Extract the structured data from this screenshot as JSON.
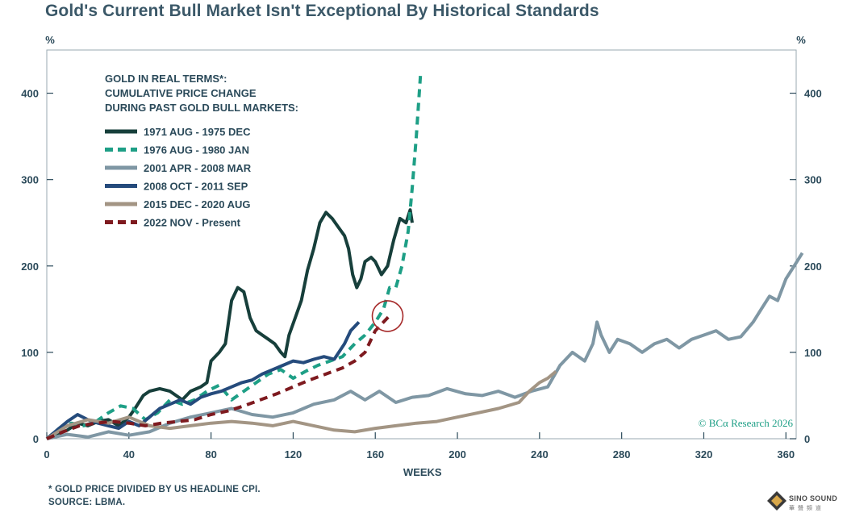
{
  "title": "Gold's Current Bull Market Isn't Exceptional By Historical Standards",
  "footnote1": "* GOLD PRICE DIVIDED BY US HEADLINE CPI.",
  "footnote2": "SOURCE: LBMA.",
  "watermark": "© BCα Research 2026",
  "logo": {
    "line1": "SINO SOUND",
    "line2": "華 聲 頻 道"
  },
  "chart_data": {
    "type": "line",
    "title": "Gold's Current Bull Market Isn't Exceptional By Historical Standards",
    "legend_title": [
      "GOLD IN REAL TERMS*:",
      "CUMULATIVE PRICE CHANGE",
      "DURING PAST GOLD BULL MARKETS:"
    ],
    "xlabel": "WEEKS",
    "ylabel_left": "%",
    "ylabel_right": "%",
    "xlim": [
      0,
      365
    ],
    "ylim": [
      0,
      450
    ],
    "xticks": [
      0,
      40,
      80,
      120,
      160,
      200,
      240,
      280,
      320,
      360
    ],
    "yticks": [
      0,
      100,
      200,
      300,
      400
    ],
    "legend_position": "top-left",
    "series": [
      {
        "name": "1971 AUG - 1975 DEC",
        "color": "#173f3b",
        "dash": "solid",
        "points": [
          [
            0,
            0
          ],
          [
            5,
            5
          ],
          [
            10,
            10
          ],
          [
            15,
            18
          ],
          [
            20,
            15
          ],
          [
            25,
            20
          ],
          [
            30,
            22
          ],
          [
            35,
            15
          ],
          [
            40,
            25
          ],
          [
            43,
            35
          ],
          [
            47,
            50
          ],
          [
            50,
            55
          ],
          [
            55,
            58
          ],
          [
            60,
            55
          ],
          [
            63,
            50
          ],
          [
            66,
            45
          ],
          [
            70,
            55
          ],
          [
            75,
            60
          ],
          [
            78,
            65
          ],
          [
            80,
            90
          ],
          [
            84,
            100
          ],
          [
            87,
            110
          ],
          [
            90,
            160
          ],
          [
            93,
            175
          ],
          [
            96,
            170
          ],
          [
            99,
            140
          ],
          [
            102,
            125
          ],
          [
            105,
            120
          ],
          [
            108,
            115
          ],
          [
            111,
            110
          ],
          [
            114,
            100
          ],
          [
            116,
            95
          ],
          [
            118,
            120
          ],
          [
            121,
            140
          ],
          [
            124,
            160
          ],
          [
            127,
            195
          ],
          [
            130,
            220
          ],
          [
            133,
            250
          ],
          [
            136,
            262
          ],
          [
            139,
            255
          ],
          [
            142,
            245
          ],
          [
            145,
            235
          ],
          [
            147,
            220
          ],
          [
            149,
            190
          ],
          [
            151,
            175
          ],
          [
            153,
            185
          ],
          [
            155,
            205
          ],
          [
            158,
            210
          ],
          [
            160,
            205
          ],
          [
            163,
            190
          ],
          [
            166,
            200
          ],
          [
            169,
            230
          ],
          [
            172,
            255
          ],
          [
            175,
            250
          ],
          [
            177,
            265
          ],
          [
            178,
            250
          ]
        ]
      },
      {
        "name": "1976 AUG - 1980 JAN",
        "color": "#1e9f86",
        "dash": "dashed",
        "points": [
          [
            0,
            0
          ],
          [
            6,
            12
          ],
          [
            12,
            18
          ],
          [
            18,
            15
          ],
          [
            24,
            20
          ],
          [
            30,
            30
          ],
          [
            36,
            38
          ],
          [
            42,
            35
          ],
          [
            48,
            22
          ],
          [
            54,
            30
          ],
          [
            60,
            45
          ],
          [
            66,
            40
          ],
          [
            72,
            45
          ],
          [
            78,
            55
          ],
          [
            84,
            62
          ],
          [
            90,
            45
          ],
          [
            96,
            55
          ],
          [
            102,
            65
          ],
          [
            108,
            75
          ],
          [
            114,
            80
          ],
          [
            120,
            70
          ],
          [
            126,
            78
          ],
          [
            132,
            85
          ],
          [
            138,
            90
          ],
          [
            144,
            95
          ],
          [
            150,
            110
          ],
          [
            155,
            120
          ],
          [
            160,
            135
          ],
          [
            164,
            150
          ],
          [
            167,
            175
          ],
          [
            170,
            175
          ],
          [
            173,
            200
          ],
          [
            176,
            240
          ],
          [
            178,
            290
          ],
          [
            180,
            350
          ],
          [
            182,
            420
          ]
        ]
      },
      {
        "name": "2001 APR - 2008 MAR",
        "color": "#7f97a4",
        "dash": "solid",
        "points": [
          [
            0,
            0
          ],
          [
            10,
            5
          ],
          [
            20,
            2
          ],
          [
            30,
            8
          ],
          [
            40,
            4
          ],
          [
            50,
            8
          ],
          [
            60,
            18
          ],
          [
            70,
            25
          ],
          [
            80,
            30
          ],
          [
            90,
            35
          ],
          [
            100,
            28
          ],
          [
            110,
            25
          ],
          [
            120,
            30
          ],
          [
            130,
            40
          ],
          [
            140,
            45
          ],
          [
            148,
            55
          ],
          [
            155,
            45
          ],
          [
            162,
            55
          ],
          [
            170,
            42
          ],
          [
            178,
            48
          ],
          [
            186,
            50
          ],
          [
            195,
            58
          ],
          [
            204,
            52
          ],
          [
            212,
            50
          ],
          [
            220,
            55
          ],
          [
            228,
            48
          ],
          [
            236,
            55
          ],
          [
            244,
            60
          ],
          [
            250,
            85
          ],
          [
            256,
            100
          ],
          [
            262,
            90
          ],
          [
            266,
            110
          ],
          [
            268,
            135
          ],
          [
            270,
            120
          ],
          [
            274,
            100
          ],
          [
            278,
            115
          ],
          [
            284,
            110
          ],
          [
            290,
            100
          ],
          [
            296,
            110
          ],
          [
            302,
            115
          ],
          [
            308,
            105
          ],
          [
            314,
            115
          ],
          [
            320,
            120
          ],
          [
            326,
            125
          ],
          [
            332,
            115
          ],
          [
            338,
            118
          ],
          [
            344,
            135
          ],
          [
            348,
            150
          ],
          [
            352,
            165
          ],
          [
            356,
            160
          ],
          [
            360,
            185
          ],
          [
            364,
            200
          ],
          [
            368,
            215
          ]
        ]
      },
      {
        "name": "2008 OCT - 2011 SEP",
        "color": "#254b7c",
        "dash": "solid",
        "points": [
          [
            0,
            0
          ],
          [
            5,
            10
          ],
          [
            10,
            20
          ],
          [
            15,
            28
          ],
          [
            20,
            22
          ],
          [
            25,
            18
          ],
          [
            30,
            15
          ],
          [
            35,
            12
          ],
          [
            40,
            20
          ],
          [
            45,
            15
          ],
          [
            50,
            25
          ],
          [
            55,
            35
          ],
          [
            60,
            40
          ],
          [
            65,
            45
          ],
          [
            70,
            40
          ],
          [
            75,
            48
          ],
          [
            80,
            52
          ],
          [
            85,
            55
          ],
          [
            90,
            60
          ],
          [
            95,
            65
          ],
          [
            100,
            68
          ],
          [
            105,
            75
          ],
          [
            110,
            80
          ],
          [
            115,
            85
          ],
          [
            120,
            90
          ],
          [
            125,
            88
          ],
          [
            130,
            92
          ],
          [
            135,
            95
          ],
          [
            140,
            92
          ],
          [
            145,
            110
          ],
          [
            148,
            125
          ],
          [
            152,
            135
          ]
        ]
      },
      {
        "name": "2015 DEC - 2020 AUG",
        "color": "#a39584",
        "dash": "solid",
        "points": [
          [
            0,
            0
          ],
          [
            10,
            15
          ],
          [
            20,
            22
          ],
          [
            30,
            18
          ],
          [
            40,
            25
          ],
          [
            50,
            15
          ],
          [
            60,
            12
          ],
          [
            70,
            15
          ],
          [
            80,
            18
          ],
          [
            90,
            20
          ],
          [
            100,
            18
          ],
          [
            110,
            15
          ],
          [
            120,
            20
          ],
          [
            130,
            15
          ],
          [
            140,
            10
          ],
          [
            150,
            8
          ],
          [
            160,
            12
          ],
          [
            170,
            15
          ],
          [
            180,
            18
          ],
          [
            190,
            20
          ],
          [
            200,
            25
          ],
          [
            210,
            30
          ],
          [
            220,
            35
          ],
          [
            230,
            42
          ],
          [
            235,
            55
          ],
          [
            240,
            65
          ],
          [
            244,
            70
          ],
          [
            248,
            78
          ]
        ]
      },
      {
        "name": "2022 NOV - Present",
        "color": "#7e1a1f",
        "dash": "dashed",
        "points": [
          [
            0,
            0
          ],
          [
            8,
            8
          ],
          [
            16,
            15
          ],
          [
            24,
            18
          ],
          [
            32,
            20
          ],
          [
            40,
            18
          ],
          [
            48,
            15
          ],
          [
            56,
            18
          ],
          [
            64,
            20
          ],
          [
            72,
            22
          ],
          [
            80,
            28
          ],
          [
            88,
            32
          ],
          [
            96,
            38
          ],
          [
            104,
            45
          ],
          [
            112,
            52
          ],
          [
            120,
            60
          ],
          [
            128,
            68
          ],
          [
            136,
            75
          ],
          [
            144,
            82
          ],
          [
            150,
            90
          ],
          [
            155,
            100
          ],
          [
            160,
            125
          ],
          [
            164,
            135
          ],
          [
            168,
            145
          ]
        ]
      }
    ],
    "annotation": {
      "type": "circle",
      "x": 166,
      "y": 142,
      "color": "#a62a2a"
    }
  }
}
